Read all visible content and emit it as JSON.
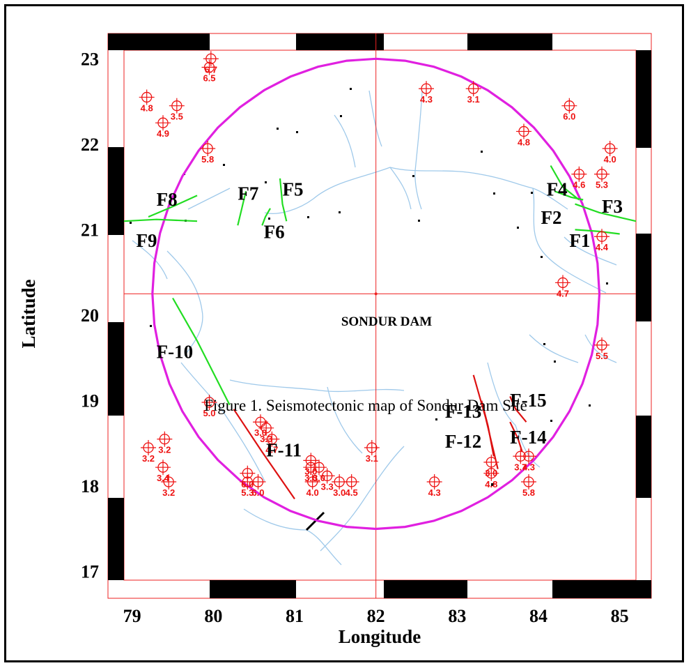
{
  "map": {
    "dam_label": "SONDUR DAM",
    "caption": "Figure 1. Seismotectonic map of Sondur Dam Site",
    "x_axis_title": "Longitude",
    "y_axis_title": "Latitude",
    "x_ticks": [
      "79",
      "80",
      "81",
      "82",
      "83",
      "84",
      "85"
    ],
    "y_ticks": [
      "23",
      "22",
      "21",
      "20",
      "19",
      "18",
      "17"
    ],
    "lon_range": [
      78.9,
      85.2
    ],
    "lat_range": [
      16.9,
      23.1
    ],
    "dam_location": {
      "lon": 82.0,
      "lat": 20.25
    },
    "circle_radius_deg": 2.75,
    "colors": {
      "circle": "#e020e0",
      "green_fault": "#22dd22",
      "red_fault": "#dd1111",
      "epicenter": "#ee1111",
      "river": "#9fc9ea",
      "grid": "#ee2222"
    }
  },
  "faults": [
    {
      "id": "F1",
      "label": "F1",
      "color": "green",
      "points": [
        [
          84.45,
          21.0
        ],
        [
          84.75,
          20.98
        ],
        [
          85.0,
          20.95
        ]
      ]
    },
    {
      "id": "F2",
      "label": "F2",
      "color": "green",
      "points": [
        [
          84.15,
          21.75
        ],
        [
          84.3,
          21.5
        ],
        [
          84.5,
          21.35
        ]
      ]
    },
    {
      "id": "F3",
      "label": "F3",
      "color": "green",
      "points": [
        [
          84.45,
          21.3
        ],
        [
          84.75,
          21.2
        ],
        [
          85.2,
          21.1
        ]
      ]
    },
    {
      "id": "F4",
      "label": "F4",
      "color": "green",
      "points": [
        [
          84.2,
          21.45
        ],
        [
          84.4,
          21.38
        ],
        [
          84.55,
          21.35
        ]
      ]
    },
    {
      "id": "F5",
      "label": "F5",
      "color": "green",
      "points": [
        [
          80.82,
          21.6
        ],
        [
          80.85,
          21.3
        ],
        [
          80.9,
          21.1
        ]
      ]
    },
    {
      "id": "F6",
      "label": "F6",
      "color": "green",
      "points": [
        [
          80.7,
          21.25
        ],
        [
          80.64,
          21.15
        ],
        [
          80.6,
          21.05
        ]
      ]
    },
    {
      "id": "F7",
      "label": "F7",
      "color": "green",
      "points": [
        [
          80.4,
          21.45
        ],
        [
          80.35,
          21.25
        ],
        [
          80.3,
          21.05
        ]
      ]
    },
    {
      "id": "F8",
      "label": "F8",
      "color": "green",
      "points": [
        [
          79.2,
          21.15
        ],
        [
          79.5,
          21.27
        ],
        [
          79.8,
          21.4
        ]
      ]
    },
    {
      "id": "F9",
      "label": "F9",
      "color": "green",
      "points": [
        [
          78.9,
          21.1
        ],
        [
          79.3,
          21.12
        ],
        [
          79.8,
          21.1
        ]
      ]
    },
    {
      "id": "F-10",
      "label": "F-10",
      "color": "green",
      "points": [
        [
          79.5,
          20.2
        ],
        [
          79.8,
          19.7
        ],
        [
          80.2,
          18.95
        ]
      ]
    },
    {
      "id": "F-11",
      "label": "F-11",
      "color": "red",
      "points": [
        [
          80.25,
          18.9
        ],
        [
          80.6,
          18.4
        ],
        [
          81.0,
          17.85
        ]
      ]
    },
    {
      "id": "F-12",
      "label": "F-12",
      "color": "red",
      "points": [
        [
          83.2,
          19.3
        ],
        [
          83.35,
          18.8
        ],
        [
          83.5,
          18.2
        ]
      ]
    },
    {
      "id": "F-13",
      "label": "F-13",
      "color": "red",
      "points": [
        [
          83.3,
          19.0
        ],
        [
          83.38,
          18.7
        ],
        [
          83.45,
          18.35
        ]
      ]
    },
    {
      "id": "F-14",
      "label": "F-14",
      "color": "red",
      "points": [
        [
          83.65,
          18.75
        ],
        [
          83.75,
          18.55
        ],
        [
          83.8,
          18.4
        ]
      ]
    },
    {
      "id": "F-15",
      "label": "F-15",
      "color": "red",
      "points": [
        [
          83.65,
          19.05
        ],
        [
          83.72,
          18.9
        ],
        [
          83.85,
          18.75
        ]
      ]
    }
  ],
  "fault_labels": [
    {
      "text": "F1",
      "lon": 84.38,
      "lat": 20.8
    },
    {
      "text": "F2",
      "lon": 84.03,
      "lat": 21.07
    },
    {
      "text": "F3",
      "lon": 84.78,
      "lat": 21.2
    },
    {
      "text": "F4",
      "lon": 84.1,
      "lat": 21.4
    },
    {
      "text": "F5",
      "lon": 80.85,
      "lat": 21.4
    },
    {
      "text": "F6",
      "lon": 80.62,
      "lat": 20.9
    },
    {
      "text": "F7",
      "lon": 80.3,
      "lat": 21.35
    },
    {
      "text": "F8",
      "lon": 79.3,
      "lat": 21.28
    },
    {
      "text": "F9",
      "lon": 79.05,
      "lat": 20.8
    },
    {
      "text": "F-10",
      "lon": 79.3,
      "lat": 19.5
    },
    {
      "text": "F-11",
      "lon": 80.65,
      "lat": 18.35
    },
    {
      "text": "F-12",
      "lon": 82.85,
      "lat": 18.45
    },
    {
      "text": "F-13",
      "lon": 82.85,
      "lat": 18.8
    },
    {
      "text": "F-14",
      "lon": 83.65,
      "lat": 18.5
    },
    {
      "text": "F-15",
      "lon": 83.65,
      "lat": 18.93
    }
  ],
  "epicenters": [
    {
      "mag": "6.7",
      "lon": 79.97,
      "lat": 23.0
    },
    {
      "mag": "6.5",
      "lon": 79.95,
      "lat": 22.9
    },
    {
      "mag": "4.8",
      "lon": 79.18,
      "lat": 22.55
    },
    {
      "mag": "3.5",
      "lon": 79.55,
      "lat": 22.45
    },
    {
      "mag": "4.9",
      "lon": 79.38,
      "lat": 22.25
    },
    {
      "mag": "5.8",
      "lon": 79.93,
      "lat": 21.95
    },
    {
      "mag": "4.3",
      "lon": 82.62,
      "lat": 22.65
    },
    {
      "mag": "3.1",
      "lon": 83.2,
      "lat": 22.65
    },
    {
      "mag": "6.0",
      "lon": 84.38,
      "lat": 22.45
    },
    {
      "mag": "4.8",
      "lon": 83.82,
      "lat": 22.15
    },
    {
      "mag": "4.0",
      "lon": 84.88,
      "lat": 21.95
    },
    {
      "mag": "4.6",
      "lon": 84.5,
      "lat": 21.65
    },
    {
      "mag": "5.3",
      "lon": 84.78,
      "lat": 21.65
    },
    {
      "mag": "4.4",
      "lon": 84.78,
      "lat": 20.92
    },
    {
      "mag": "4.7",
      "lon": 84.3,
      "lat": 20.38
    },
    {
      "mag": "5.5",
      "lon": 84.78,
      "lat": 19.65
    },
    {
      "mag": "5.0",
      "lon": 79.95,
      "lat": 18.98
    },
    {
      "mag": "3.0",
      "lon": 80.58,
      "lat": 18.75
    },
    {
      "mag": "3.3",
      "lon": 80.65,
      "lat": 18.68
    },
    {
      "mag": "4.7",
      "lon": 80.72,
      "lat": 18.55
    },
    {
      "mag": "3.0",
      "lon": 81.2,
      "lat": 18.3
    },
    {
      "mag": "3.0",
      "lon": 81.3,
      "lat": 18.22
    },
    {
      "mag": "3.0",
      "lon": 81.2,
      "lat": 18.22
    },
    {
      "mag": "4.0",
      "lon": 81.22,
      "lat": 18.05
    },
    {
      "mag": "3.3",
      "lon": 81.4,
      "lat": 18.12
    },
    {
      "mag": "3.0",
      "lon": 81.55,
      "lat": 18.05
    },
    {
      "mag": "4.5",
      "lon": 81.7,
      "lat": 18.05
    },
    {
      "mag": "6.0",
      "lon": 80.42,
      "lat": 18.15
    },
    {
      "mag": "5.3",
      "lon": 80.42,
      "lat": 18.05
    },
    {
      "mag": "6.0",
      "lon": 80.55,
      "lat": 18.05
    },
    {
      "mag": "3.1",
      "lon": 81.95,
      "lat": 18.45
    },
    {
      "mag": "4.3",
      "lon": 82.72,
      "lat": 18.05
    },
    {
      "mag": "3.0",
      "lon": 83.42,
      "lat": 18.28
    },
    {
      "mag": "4.8",
      "lon": 83.42,
      "lat": 18.15
    },
    {
      "mag": "3.7",
      "lon": 83.78,
      "lat": 18.35
    },
    {
      "mag": "4.3",
      "lon": 83.88,
      "lat": 18.35
    },
    {
      "mag": "5.8",
      "lon": 83.88,
      "lat": 18.05
    },
    {
      "mag": "3.2",
      "lon": 79.2,
      "lat": 18.45
    },
    {
      "mag": "3.2",
      "lon": 79.4,
      "lat": 18.55
    },
    {
      "mag": "3.4",
      "lon": 79.38,
      "lat": 18.22
    },
    {
      "mag": "3.2",
      "lon": 79.45,
      "lat": 18.05
    }
  ]
}
